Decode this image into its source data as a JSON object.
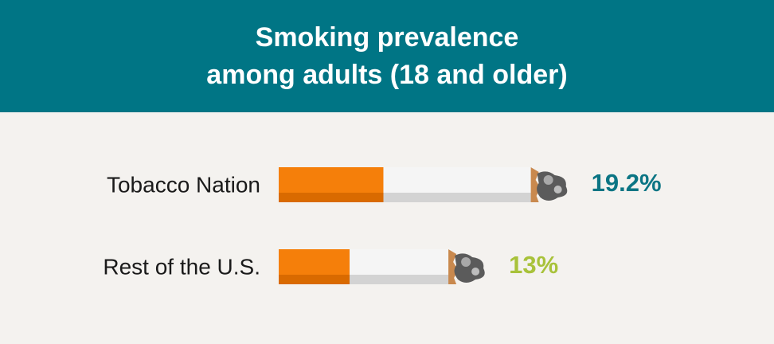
{
  "chart_data": {
    "type": "bar",
    "title": "Smoking prevalence\namong adults (18 and older)",
    "categories": [
      "Tobacco Nation",
      "Rest of the U.S."
    ],
    "values": [
      19.2,
      13
    ],
    "value_labels": [
      "19.2%",
      "13%"
    ],
    "label_colors": [
      "#0b7584",
      "#a8c23a"
    ],
    "color": "#f57f0a"
  }
}
